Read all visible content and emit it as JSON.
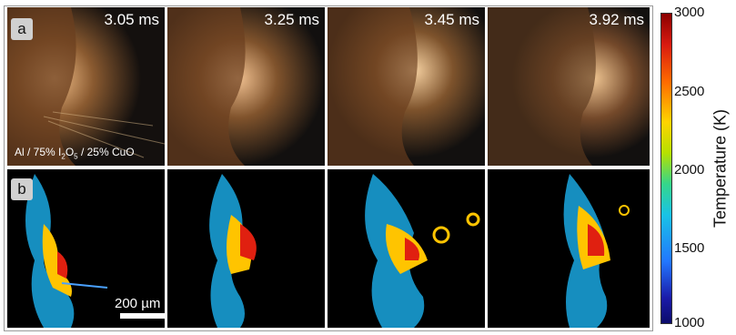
{
  "panel_tags": {
    "top": "a",
    "bottom": "b"
  },
  "times": [
    "3.05 ms",
    "3.25 ms",
    "3.45 ms",
    "3.92 ms"
  ],
  "sample_label": {
    "prefix": "Al / 75% I",
    "sub1": "2",
    "mid": "O",
    "sub2": "5",
    "suffix": " / 25% CuO"
  },
  "scale_bar_label": "200 µm",
  "colorbar": {
    "title": "Temperature (K)",
    "ticks": [
      "3000",
      "2500",
      "2000",
      "1500",
      "1000"
    ]
  }
}
